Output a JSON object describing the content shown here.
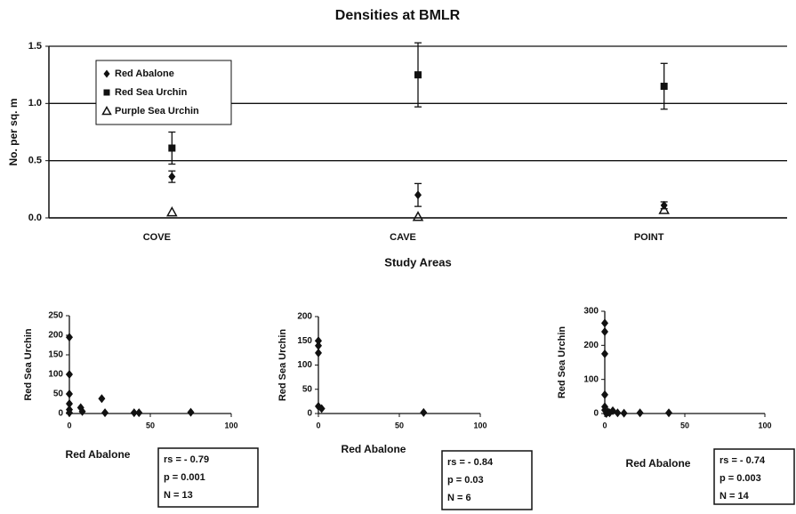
{
  "chart_data": [
    {
      "type": "dot",
      "title": "Densities at BMLR",
      "ylabel": "No. per sq. m",
      "xlabel": "Study Areas",
      "categories": [
        "COVE",
        "CAVE",
        "POINT"
      ],
      "ylim": [
        0,
        1.5
      ],
      "yticks": [
        {
          "value": 0,
          "label": "0.0"
        },
        0.5,
        {
          "value": 1,
          "label": "1.0"
        },
        1.5
      ],
      "grid": true,
      "legend": "upper left",
      "series": [
        {
          "name": "Red Abalone",
          "color": "#111111",
          "marker": "diamond",
          "values": [
            0.36,
            0.2,
            0.11
          ],
          "errors": [
            0.05,
            0.1,
            0.03
          ]
        },
        {
          "name": "Red Sea Urchin",
          "color": "#111111",
          "marker": "square",
          "values": [
            0.61,
            1.25,
            1.15
          ],
          "errors": [
            0.14,
            0.28,
            0.2
          ]
        },
        {
          "name": "Purple Sea Urchin",
          "color": "#111111",
          "marker": "triangle",
          "values": [
            0.05,
            0.01,
            0.07
          ]
        }
      ]
    },
    {
      "type": "scatter",
      "xlabel": "Red Abalone",
      "ylabel": "Red Sea Urchin",
      "color": "#111111",
      "xlim": [
        0,
        100
      ],
      "xticks": [
        0,
        50,
        100
      ],
      "ylim": [
        0,
        250
      ],
      "yticks": [
        0,
        50,
        100,
        150,
        200,
        250
      ],
      "x": [
        0,
        0,
        0,
        0,
        0,
        0,
        7,
        8,
        20,
        22,
        40,
        43,
        75
      ],
      "values": [
        195,
        100,
        50,
        25,
        10,
        2,
        15,
        5,
        38,
        2,
        2,
        2,
        3
      ],
      "stats": [
        "rs = - 0.79",
        "p = 0.001",
        "N = 13"
      ]
    },
    {
      "type": "scatter",
      "xlabel": "Red Abalone",
      "ylabel": "Red Sea Urchin",
      "color": "#111111",
      "xlim": [
        0,
        100
      ],
      "xticks": [
        0,
        50,
        100
      ],
      "ylim": [
        0,
        200
      ],
      "yticks": [
        0,
        50,
        100,
        150,
        200
      ],
      "x": [
        0,
        0,
        0,
        0,
        2,
        65
      ],
      "values": [
        150,
        140,
        125,
        15,
        10,
        2
      ],
      "stats": [
        "rs = - 0.84",
        "p = 0.03",
        "N = 6"
      ]
    },
    {
      "type": "scatter",
      "xlabel": "Red Abalone",
      "ylabel": "Red Sea Urchin",
      "color": "#111111",
      "xlim": [
        0,
        100
      ],
      "xticks": [
        0,
        50,
        100
      ],
      "ylim": [
        0,
        300
      ],
      "yticks": [
        0,
        100,
        200,
        300
      ],
      "x": [
        0,
        0,
        0,
        0,
        0,
        0,
        1,
        2,
        3,
        5,
        8,
        12,
        22,
        40
      ],
      "values": [
        265,
        240,
        175,
        55,
        20,
        10,
        0,
        5,
        2,
        8,
        2,
        1,
        2,
        2
      ],
      "stats": [
        "rs = - 0.74",
        "p = 0.003",
        "N = 14"
      ]
    }
  ]
}
